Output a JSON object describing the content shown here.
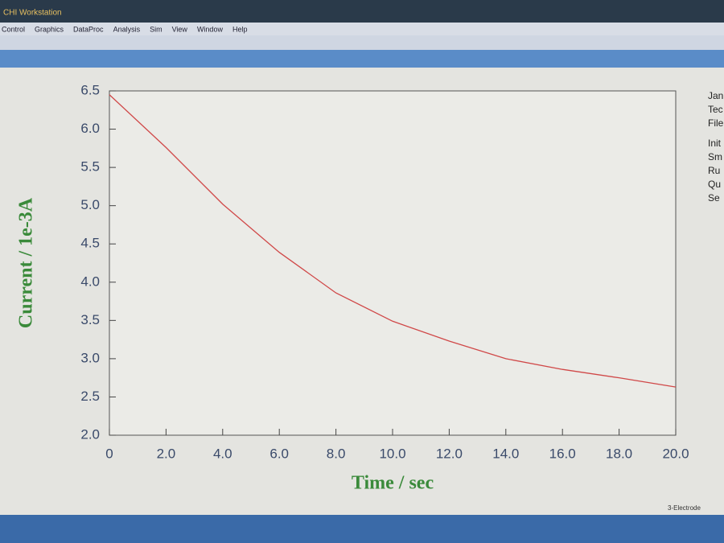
{
  "window": {
    "title": "CHI Workstation",
    "menu": [
      "Control",
      "Graphics",
      "DataProc",
      "Analysis",
      "Sim",
      "View",
      "Window",
      "Help"
    ],
    "info": [
      "Jan",
      "Tec",
      "File",
      "Init",
      "Sm",
      "Ru",
      "Qu",
      "Se"
    ],
    "status": "3-Electrode"
  },
  "chart_data": {
    "type": "line",
    "xlabel": "Time / sec",
    "ylabel": "Current / 1e-3A",
    "x": [
      0,
      2,
      4,
      6,
      8,
      10,
      12,
      14,
      16,
      18,
      20
    ],
    "series": [
      {
        "color": "#d04848",
        "values": [
          6.45,
          5.76,
          5.02,
          4.39,
          3.86,
          3.49,
          3.23,
          3.0,
          2.86,
          2.75,
          2.63
        ]
      }
    ],
    "xlim": [
      0,
      20
    ],
    "xticks": [
      0,
      {
        "value": 2,
        "label": "2.0"
      },
      {
        "value": 4,
        "label": "4.0"
      },
      {
        "value": 6,
        "label": "6.0"
      },
      {
        "value": 8,
        "label": "8.0"
      },
      {
        "value": 10,
        "label": "10.0"
      },
      {
        "value": 12,
        "label": "12.0"
      },
      {
        "value": 14,
        "label": "14.0"
      },
      {
        "value": 16,
        "label": "16.0"
      },
      {
        "value": 18,
        "label": "18.0"
      },
      {
        "value": 20,
        "label": "20.0"
      }
    ],
    "ylim": [
      2,
      6.5
    ],
    "yticks": [
      {
        "value": 2,
        "label": "2.0"
      },
      2.5,
      {
        "value": 3,
        "label": "3.0"
      },
      3.5,
      {
        "value": 4,
        "label": "4.0"
      },
      4.5,
      {
        "value": 5,
        "label": "5.0"
      },
      5.5,
      {
        "value": 6,
        "label": "6.0"
      },
      6.5
    ]
  }
}
